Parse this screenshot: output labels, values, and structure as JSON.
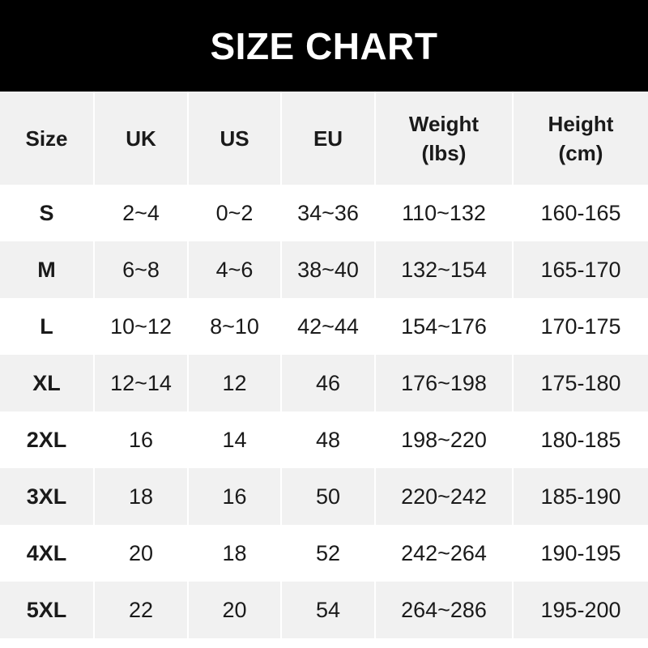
{
  "title": "SIZE CHART",
  "headers": [
    {
      "line1": "Size",
      "line2": ""
    },
    {
      "line1": "UK",
      "line2": ""
    },
    {
      "line1": "US",
      "line2": ""
    },
    {
      "line1": "EU",
      "line2": ""
    },
    {
      "line1": "Weight",
      "line2": "(lbs)"
    },
    {
      "line1": "Height",
      "line2": "(cm)"
    }
  ],
  "rows": [
    [
      "S",
      "2~4",
      "0~2",
      "34~36",
      "110~132",
      "160-165"
    ],
    [
      "M",
      "6~8",
      "4~6",
      "38~40",
      "132~154",
      "165-170"
    ],
    [
      "L",
      "10~12",
      "8~10",
      "42~44",
      "154~176",
      "170-175"
    ],
    [
      "XL",
      "12~14",
      "12",
      "46",
      "176~198",
      "175-180"
    ],
    [
      "2XL",
      "16",
      "14",
      "48",
      "198~220",
      "180-185"
    ],
    [
      "3XL",
      "18",
      "16",
      "50",
      "220~242",
      "185-190"
    ],
    [
      "4XL",
      "20",
      "18",
      "52",
      "242~264",
      "190-195"
    ],
    [
      "5XL",
      "22",
      "20",
      "54",
      "264~286",
      "195-200"
    ]
  ],
  "colors": {
    "banner": "#000000",
    "stripe": "#f1f1f1"
  }
}
